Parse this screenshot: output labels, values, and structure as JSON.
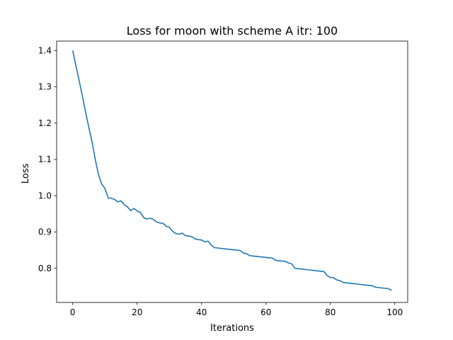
{
  "chart_data": {
    "type": "line",
    "title": "Loss for moon with scheme A itr: 100",
    "xlabel": "Iterations",
    "ylabel": "Loss",
    "xlim": [
      -5,
      104
    ],
    "ylim": [
      0.706,
      1.426
    ],
    "xticks": [
      0,
      20,
      40,
      60,
      80,
      100
    ],
    "yticks": [
      0.8,
      0.9,
      1.0,
      1.1,
      1.2,
      1.3,
      1.4
    ],
    "ytick_labels": [
      "0.8",
      "0.9",
      "1.0",
      "1.1",
      "1.2",
      "1.3",
      "1.4"
    ],
    "grid": false,
    "color": "#1f77b4",
    "series": [
      {
        "x": [
          0,
          1,
          2,
          3,
          4,
          5,
          6,
          7,
          8,
          9,
          10,
          11,
          12,
          13,
          14,
          15,
          16,
          17,
          18,
          19,
          20,
          21,
          22,
          23,
          24,
          25,
          26,
          27,
          28,
          29,
          30,
          31,
          32,
          33,
          34,
          35,
          36,
          37,
          38,
          39,
          40,
          41,
          42,
          43,
          44,
          45,
          46,
          47,
          48,
          49,
          50,
          51,
          52,
          53,
          54,
          55,
          56,
          57,
          58,
          59,
          60,
          61,
          62,
          63,
          64,
          65,
          66,
          67,
          68,
          69,
          70,
          71,
          72,
          73,
          74,
          75,
          76,
          77,
          78,
          79,
          80,
          81,
          82,
          83,
          84,
          85,
          86,
          87,
          88,
          89,
          90,
          91,
          92,
          93,
          94,
          95,
          96,
          97,
          98,
          99
        ],
        "values": [
          1.4,
          1.358,
          1.317,
          1.274,
          1.23,
          1.188,
          1.148,
          1.1,
          1.058,
          1.032,
          1.02,
          0.994,
          0.993,
          0.99,
          0.983,
          0.986,
          0.975,
          0.969,
          0.959,
          0.965,
          0.958,
          0.954,
          0.94,
          0.936,
          0.938,
          0.935,
          0.928,
          0.925,
          0.924,
          0.916,
          0.913,
          0.902,
          0.896,
          0.894,
          0.897,
          0.89,
          0.889,
          0.887,
          0.881,
          0.879,
          0.878,
          0.873,
          0.875,
          0.864,
          0.857,
          0.856,
          0.855,
          0.854,
          0.853,
          0.852,
          0.851,
          0.85,
          0.849,
          0.842,
          0.84,
          0.835,
          0.834,
          0.833,
          0.832,
          0.831,
          0.83,
          0.829,
          0.828,
          0.822,
          0.821,
          0.82,
          0.819,
          0.815,
          0.812,
          0.8,
          0.799,
          0.798,
          0.797,
          0.796,
          0.795,
          0.794,
          0.793,
          0.792,
          0.791,
          0.78,
          0.775,
          0.774,
          0.768,
          0.766,
          0.761,
          0.76,
          0.759,
          0.758,
          0.757,
          0.756,
          0.755,
          0.754,
          0.753,
          0.752,
          0.748,
          0.747,
          0.746,
          0.745,
          0.744,
          0.739
        ]
      }
    ]
  }
}
